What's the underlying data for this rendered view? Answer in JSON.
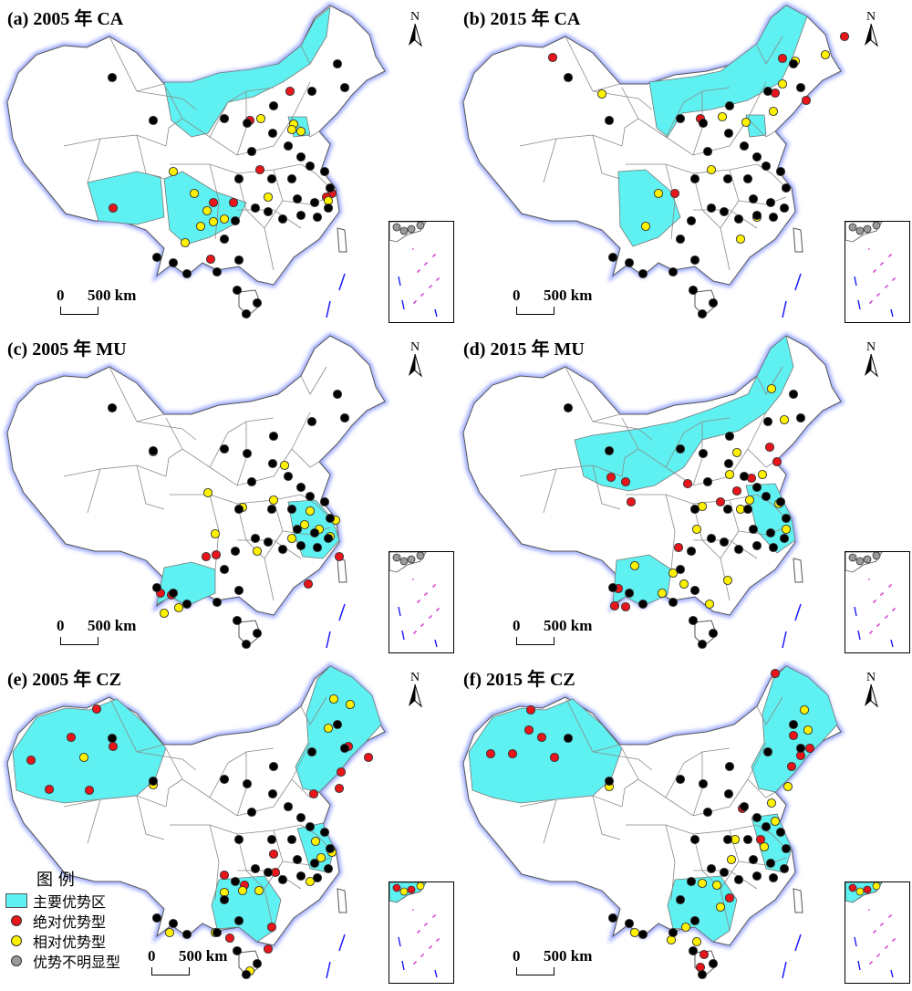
{
  "colors": {
    "advantage_region": "#5ff1f1",
    "absolute": "#e8151b",
    "relative": "#fff200",
    "unclear": "#9a9a9a",
    "border": "#8a8a8a",
    "coast": "#1a1aff"
  },
  "north_label": "N",
  "scale": {
    "zero": "0",
    "label": "500 km"
  },
  "panels": [
    {
      "title": "(a) 2005 年 CA"
    },
    {
      "title": "(b) 2015 年 CA"
    },
    {
      "title": "(c) 2005 年 MU"
    },
    {
      "title": "(d) 2015 年 MU"
    },
    {
      "title": "(e) 2005 年 CZ"
    },
    {
      "title": "(f) 2015 年 CZ"
    }
  ],
  "legend": {
    "title": "图 例",
    "items": [
      {
        "label": "主要优势区"
      },
      {
        "label": "绝对优势型"
      },
      {
        "label": "相对优势型"
      },
      {
        "label": "优势不明显型"
      }
    ]
  }
}
